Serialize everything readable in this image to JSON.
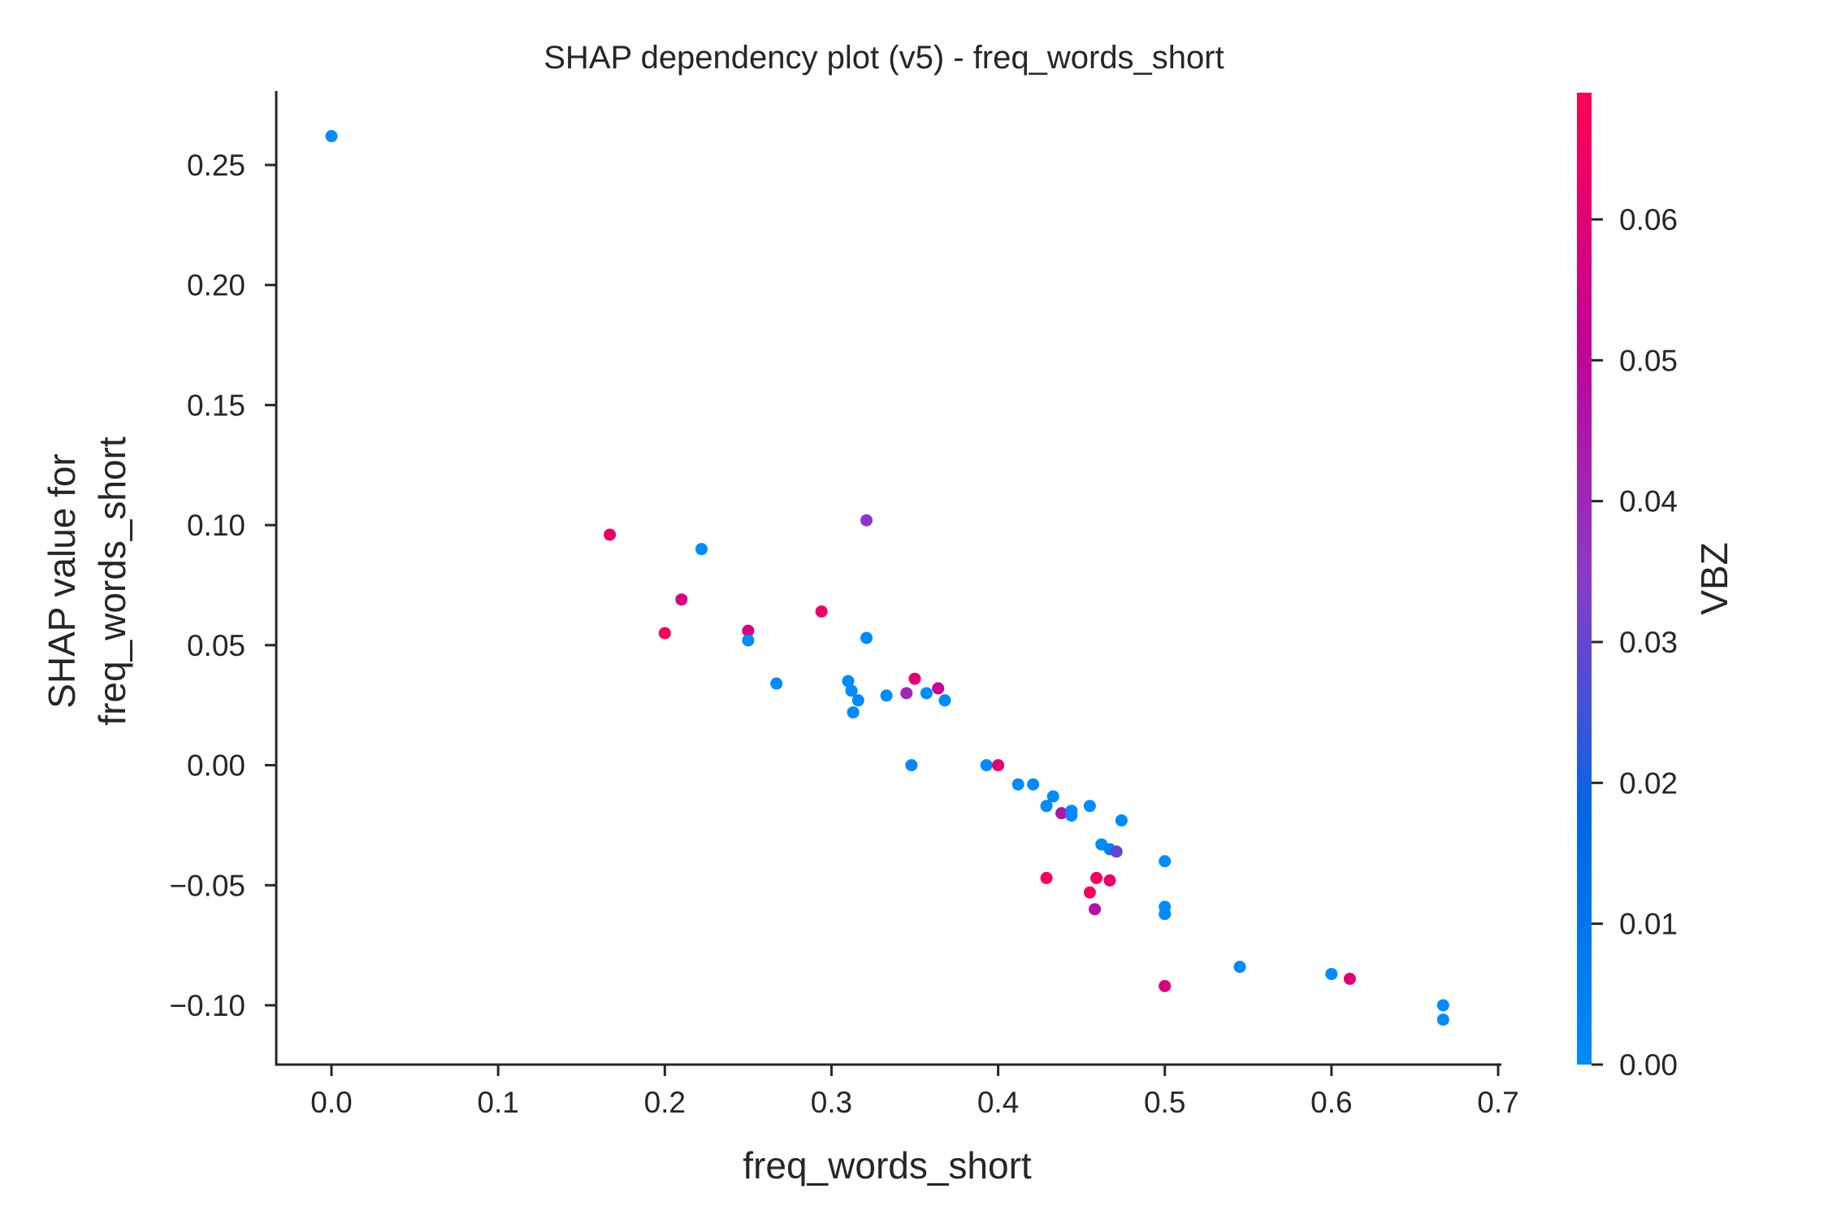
{
  "chart_data": {
    "type": "scatter",
    "title": "SHAP dependency plot (v5) - freq_words_short",
    "xlabel": "freq_words_short",
    "ylabel_lines": [
      "SHAP value for",
      "freq_words_short"
    ],
    "xlim": [
      -0.033,
      0.7
    ],
    "ylim": [
      -0.125,
      0.28
    ],
    "xticks": [
      0.0,
      0.1,
      0.2,
      0.3,
      0.4,
      0.5,
      0.6,
      0.7
    ],
    "xtick_labels": [
      "0.0",
      "0.1",
      "0.2",
      "0.3",
      "0.4",
      "0.5",
      "0.6",
      "0.7"
    ],
    "yticks": [
      0.25,
      0.2,
      0.15,
      0.1,
      0.05,
      0.0,
      -0.05,
      -0.1
    ],
    "ytick_labels": [
      "0.25",
      "0.20",
      "0.15",
      "0.10",
      "0.05",
      "0.00",
      "−0.05",
      "−0.10"
    ],
    "colorbar": {
      "label": "VBZ",
      "range": [
        0.0,
        0.069
      ],
      "ticks": [
        0.0,
        0.01,
        0.02,
        0.03,
        0.04,
        0.05,
        0.06
      ],
      "tick_labels": [
        "0.00",
        "0.01",
        "0.02",
        "0.03",
        "0.04",
        "0.05",
        "0.06"
      ],
      "colormap": [
        "#008afb",
        "#0066e7",
        "#8a3ac8",
        "#c50094",
        "#ff0051"
      ]
    },
    "grid": false,
    "points": [
      {
        "x": 0.0,
        "y": 0.262,
        "c": 0.0
      },
      {
        "x": 0.167,
        "y": 0.096,
        "c": 0.063
      },
      {
        "x": 0.2,
        "y": 0.055,
        "c": 0.068
      },
      {
        "x": 0.21,
        "y": 0.069,
        "c": 0.057
      },
      {
        "x": 0.222,
        "y": 0.09,
        "c": 0.0
      },
      {
        "x": 0.25,
        "y": 0.056,
        "c": 0.057
      },
      {
        "x": 0.25,
        "y": 0.052,
        "c": 0.0
      },
      {
        "x": 0.267,
        "y": 0.034,
        "c": 0.0
      },
      {
        "x": 0.294,
        "y": 0.064,
        "c": 0.063
      },
      {
        "x": 0.31,
        "y": 0.035,
        "c": 0.0
      },
      {
        "x": 0.312,
        "y": 0.031,
        "c": 0.0
      },
      {
        "x": 0.313,
        "y": 0.022,
        "c": 0.0
      },
      {
        "x": 0.316,
        "y": 0.027,
        "c": 0.0
      },
      {
        "x": 0.321,
        "y": 0.102,
        "c": 0.035
      },
      {
        "x": 0.321,
        "y": 0.053,
        "c": 0.0
      },
      {
        "x": 0.333,
        "y": 0.029,
        "c": 0.0
      },
      {
        "x": 0.345,
        "y": 0.03,
        "c": 0.04
      },
      {
        "x": 0.35,
        "y": 0.036,
        "c": 0.06
      },
      {
        "x": 0.357,
        "y": 0.03,
        "c": 0.0
      },
      {
        "x": 0.348,
        "y": 0.0,
        "c": 0.0
      },
      {
        "x": 0.364,
        "y": 0.032,
        "c": 0.052
      },
      {
        "x": 0.368,
        "y": 0.027,
        "c": 0.0
      },
      {
        "x": 0.393,
        "y": 0.0,
        "c": 0.0
      },
      {
        "x": 0.4,
        "y": 0.0,
        "c": 0.06
      },
      {
        "x": 0.412,
        "y": -0.008,
        "c": 0.0
      },
      {
        "x": 0.421,
        "y": -0.008,
        "c": 0.0
      },
      {
        "x": 0.429,
        "y": -0.017,
        "c": 0.0
      },
      {
        "x": 0.433,
        "y": -0.013,
        "c": 0.0
      },
      {
        "x": 0.438,
        "y": -0.02,
        "c": 0.045
      },
      {
        "x": 0.444,
        "y": -0.021,
        "c": 0.0
      },
      {
        "x": 0.444,
        "y": -0.019,
        "c": 0.0
      },
      {
        "x": 0.455,
        "y": -0.017,
        "c": 0.0
      },
      {
        "x": 0.462,
        "y": -0.033,
        "c": 0.0
      },
      {
        "x": 0.467,
        "y": -0.035,
        "c": 0.005
      },
      {
        "x": 0.471,
        "y": -0.036,
        "c": 0.03
      },
      {
        "x": 0.474,
        "y": -0.023,
        "c": 0.0
      },
      {
        "x": 0.429,
        "y": -0.047,
        "c": 0.066
      },
      {
        "x": 0.455,
        "y": -0.053,
        "c": 0.066
      },
      {
        "x": 0.459,
        "y": -0.047,
        "c": 0.066
      },
      {
        "x": 0.467,
        "y": -0.048,
        "c": 0.062
      },
      {
        "x": 0.458,
        "y": -0.06,
        "c": 0.046
      },
      {
        "x": 0.5,
        "y": -0.04,
        "c": 0.0
      },
      {
        "x": 0.5,
        "y": -0.059,
        "c": 0.0
      },
      {
        "x": 0.5,
        "y": -0.062,
        "c": 0.0
      },
      {
        "x": 0.5,
        "y": -0.092,
        "c": 0.058
      },
      {
        "x": 0.545,
        "y": -0.084,
        "c": 0.0
      },
      {
        "x": 0.6,
        "y": -0.087,
        "c": 0.0
      },
      {
        "x": 0.611,
        "y": -0.089,
        "c": 0.06
      },
      {
        "x": 0.667,
        "y": -0.1,
        "c": 0.0
      },
      {
        "x": 0.667,
        "y": -0.106,
        "c": 0.0
      }
    ]
  }
}
